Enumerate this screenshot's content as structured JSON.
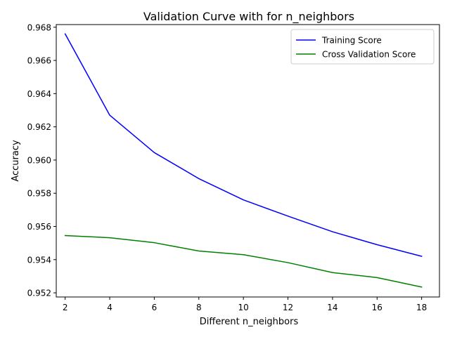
{
  "chart_data": {
    "type": "line",
    "title": "Validation Curve with for n_neighbors",
    "xlabel": "Different n_neighbors",
    "ylabel": "Accuracy",
    "x": [
      2,
      4,
      6,
      8,
      10,
      12,
      14,
      16,
      18
    ],
    "xlim": [
      1.6,
      18.8
    ],
    "ylim": [
      0.95175,
      0.96816
    ],
    "xticks": [
      "2",
      "4",
      "6",
      "8",
      "10",
      "12",
      "14",
      "16",
      "18"
    ],
    "yticks": [
      "0.952",
      "0.954",
      "0.956",
      "0.958",
      "0.960",
      "0.962",
      "0.964",
      "0.966",
      "0.968"
    ],
    "grid": false,
    "legend_position": "top-right",
    "series": [
      {
        "name": "Training Score",
        "color": "#0000ff",
        "values": [
          0.9676,
          0.9627,
          0.96045,
          0.95888,
          0.9576,
          0.95662,
          0.95568,
          0.9549,
          0.9542
        ]
      },
      {
        "name": "Cross Validation Score",
        "color": "#008000",
        "values": [
          0.95545,
          0.95532,
          0.95502,
          0.95452,
          0.9543,
          0.95382,
          0.95322,
          0.95292,
          0.95235
        ]
      }
    ]
  }
}
